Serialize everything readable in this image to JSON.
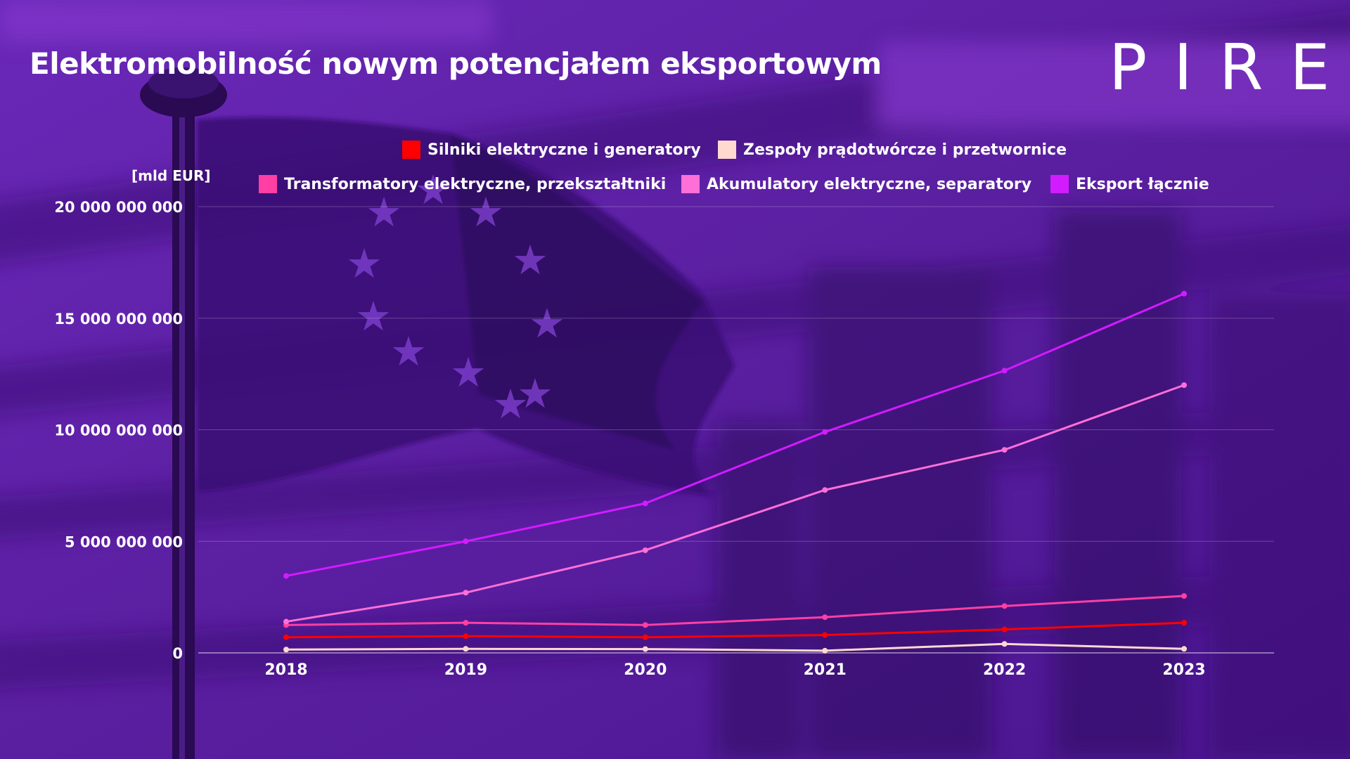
{
  "header": {
    "title": "Elektromobilność nowym potencjałem eksportowym",
    "logo": "PIRE"
  },
  "colors": {
    "background": "#5a1fa3",
    "silniki": "#ff0000",
    "zespoly": "#ffd9d0",
    "transformatory": "#ff3fa4",
    "akumulatory": "#ff6fd8",
    "eksport": "#d21bff"
  },
  "chart_data": {
    "type": "line",
    "unit_label": "[mld EUR]",
    "categories": [
      "2018",
      "2019",
      "2020",
      "2021",
      "2022",
      "2023"
    ],
    "ylim": [
      0,
      20000000000
    ],
    "y_ticks": [
      {
        "value": 0,
        "label": "0"
      },
      {
        "value": 5000000000,
        "label": "5 000 000 000"
      },
      {
        "value": 10000000000,
        "label": "10 000 000 000"
      },
      {
        "value": 15000000000,
        "label": "15 000 000 000"
      },
      {
        "value": 20000000000,
        "label": "20 000 000 000"
      }
    ],
    "grid": true,
    "legend_position": "top",
    "series": [
      {
        "key": "silniki",
        "name": "Silniki elektryczne i generatory",
        "color": "#ff0000",
        "values": [
          700000000,
          750000000,
          700000000,
          800000000,
          1050000000,
          1350000000
        ]
      },
      {
        "key": "zespoly",
        "name": "Zespoły prądotwórcze i przetwornice",
        "color": "#ffd9d0",
        "values": [
          150000000,
          180000000,
          170000000,
          100000000,
          400000000,
          180000000
        ]
      },
      {
        "key": "transformatory",
        "name": "Transformatory elektryczne, przekształtniki",
        "color": "#ff3fa4",
        "values": [
          1250000000,
          1350000000,
          1250000000,
          1600000000,
          2100000000,
          2550000000
        ]
      },
      {
        "key": "akumulatory",
        "name": "Akumulatory elektryczne, separatory",
        "color": "#ff6fd8",
        "values": [
          1400000000,
          2700000000,
          4600000000,
          7300000000,
          9100000000,
          12000000000
        ]
      },
      {
        "key": "eksport",
        "name": "Eksport łącznie",
        "color": "#d21bff",
        "values": [
          3450000000,
          5000000000,
          6700000000,
          9900000000,
          12650000000,
          16100000000
        ]
      }
    ]
  }
}
